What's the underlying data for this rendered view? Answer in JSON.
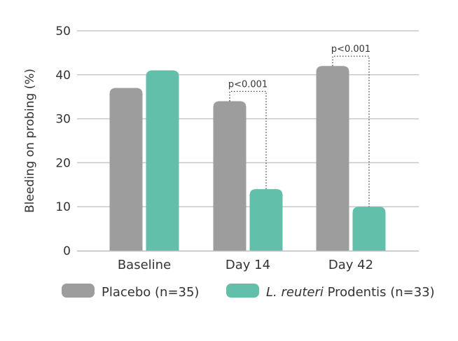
{
  "chart_data": {
    "type": "bar",
    "categories": [
      "Baseline",
      "Day 14",
      "Day 42"
    ],
    "series": [
      {
        "name": "Placebo (n=35)",
        "color": "#9e9d9d",
        "values": [
          37,
          34,
          42
        ]
      },
      {
        "name_italic": "L. reuteri",
        "name_rest": " Prodentis (n=33)",
        "color": "#62bfaa",
        "values": [
          41,
          14,
          10
        ]
      }
    ],
    "ylabel": "Bleeding on probing (%)",
    "ylim": [
      0,
      50
    ],
    "yticks": [
      0,
      10,
      20,
      30,
      40,
      50
    ],
    "grid": true,
    "legend": "bottom",
    "annotations": [
      {
        "text": "p<0.001",
        "category": 1
      },
      {
        "text": "p<0.001",
        "category": 2
      }
    ]
  }
}
